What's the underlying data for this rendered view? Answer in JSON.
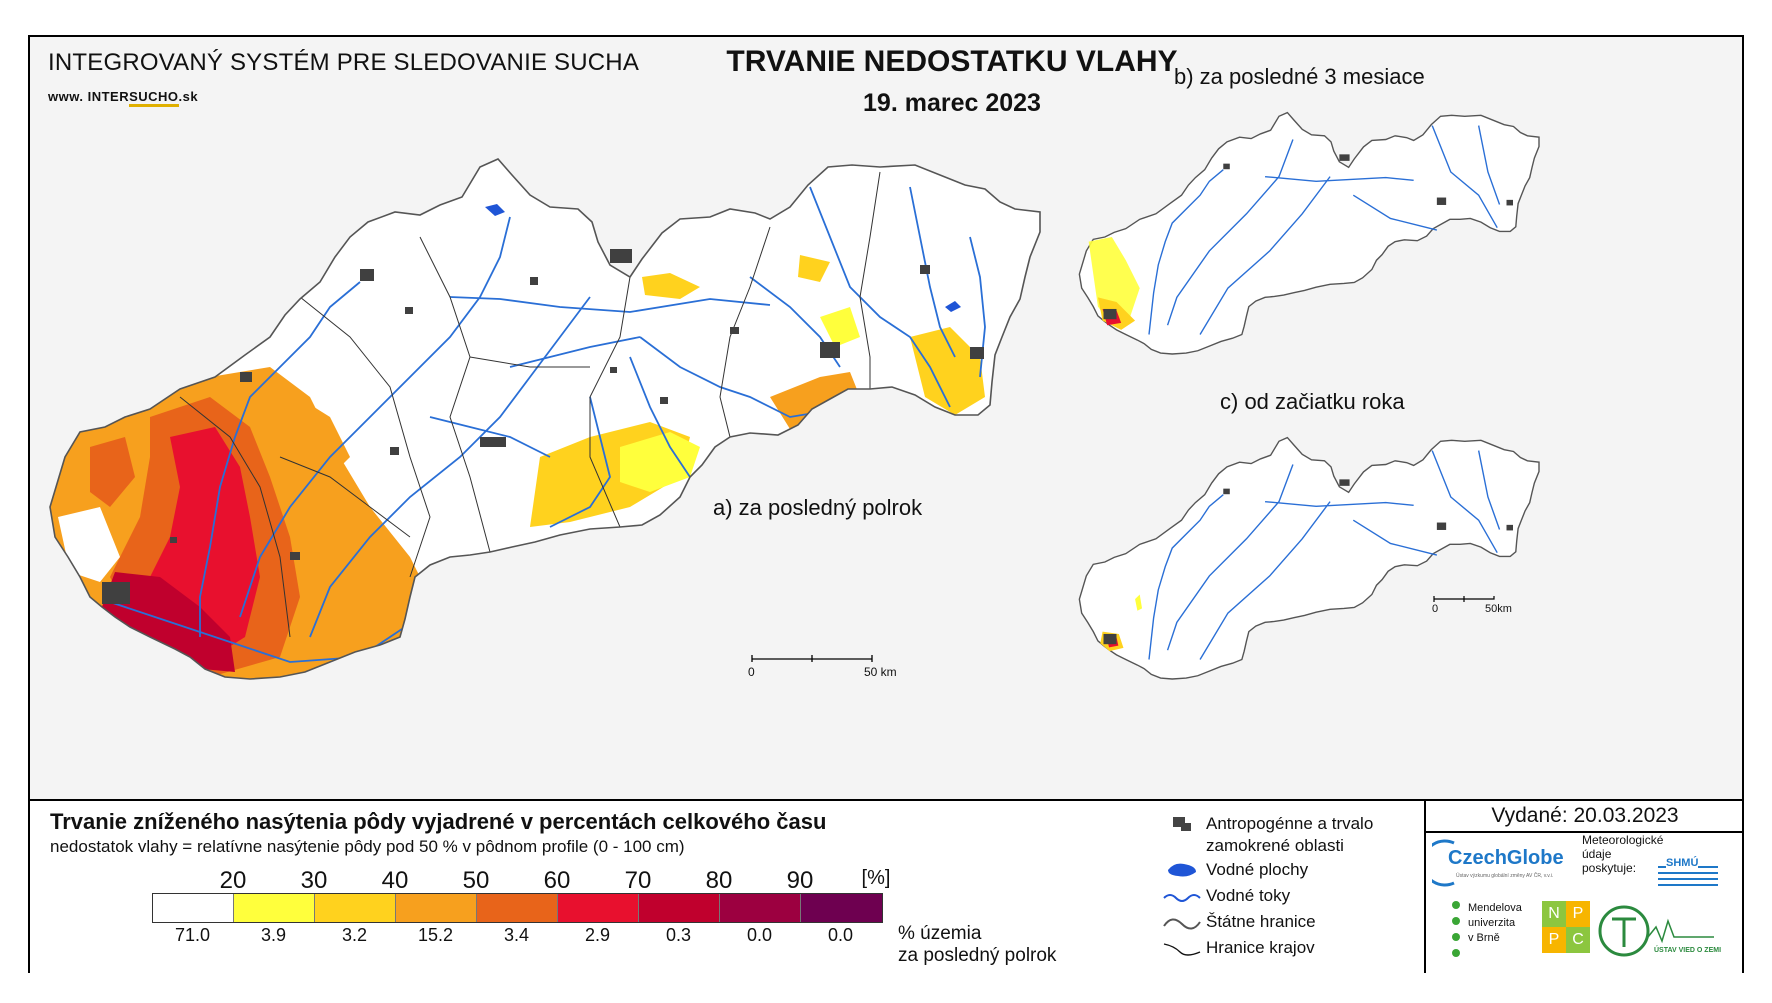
{
  "header": {
    "system_name": "INTEGROVANÝ SYSTÉM PRE SLEDOVANIE SUCHA",
    "url_prefix": "www. INTER",
    "url_accent": "SUCHO",
    "url_suffix": ".sk",
    "title": "TRVANIE NEDOSTATKU VLAHY",
    "date": "19. marec 2023"
  },
  "maps": {
    "main_label": "a) za posledný polrok",
    "b_label": "b) za posledné 3 mesiace",
    "c_label": "c) od začiatku roka",
    "scale_main": {
      "zero": "0",
      "end": "50 km"
    },
    "scale_small": {
      "zero": "0",
      "end": "50km"
    }
  },
  "legend": {
    "title": "Trvanie zníženého nasýtenia pôdy vyjadrené v percentách celkového času",
    "subtitle": "nedostatok vlahy = relatívne nasýtenie pôdy pod 50 % v pôdnom profile (0 - 100 cm)",
    "thresholds": [
      "20",
      "30",
      "40",
      "50",
      "60",
      "70",
      "80",
      "90"
    ],
    "unit": "[%]",
    "colors": [
      "#ffffff",
      "#ffff3c",
      "#ffd21e",
      "#f7a01e",
      "#e8641a",
      "#e8102e",
      "#c0002d",
      "#9c0040",
      "#6e0050"
    ],
    "percentages": [
      "71.0",
      "3.9",
      "3.2",
      "15.2",
      "3.4",
      "2.9",
      "0.3",
      "0.0",
      "0.0"
    ],
    "percent_label_1": "% územia",
    "percent_label_2": "za posledný polrok"
  },
  "symbols": [
    {
      "icon": "urban-area-icon",
      "label_1": "Antropogénne a trvalo",
      "label_2": "zamokrené oblasti"
    },
    {
      "icon": "water-body-icon",
      "label_1": "Vodné plochy"
    },
    {
      "icon": "river-icon",
      "label_1": "Vodné toky"
    },
    {
      "icon": "state-border-icon",
      "label_1": "Štátne hranice"
    },
    {
      "icon": "region-border-icon",
      "label_1": "Hranice krajov"
    }
  ],
  "credits": {
    "issued": "Vydané: 20.03.2023",
    "czechglobe": "CzechGlobe",
    "czechglobe_sub": "Ústav výzkumu globální změny AV ČR, v.v.i.",
    "meteo_1": "Meteorologické",
    "meteo_2": "údaje",
    "meteo_3": "poskytuje:",
    "shmu": "SHMÚ",
    "mendel_1": "Mendelova",
    "mendel_2": "univerzita",
    "mendel_3": "v Brně",
    "nppc_letters": [
      "N",
      "P",
      "P",
      "C"
    ],
    "uvz": "ÚSTAV VIED O ZEMI"
  }
}
